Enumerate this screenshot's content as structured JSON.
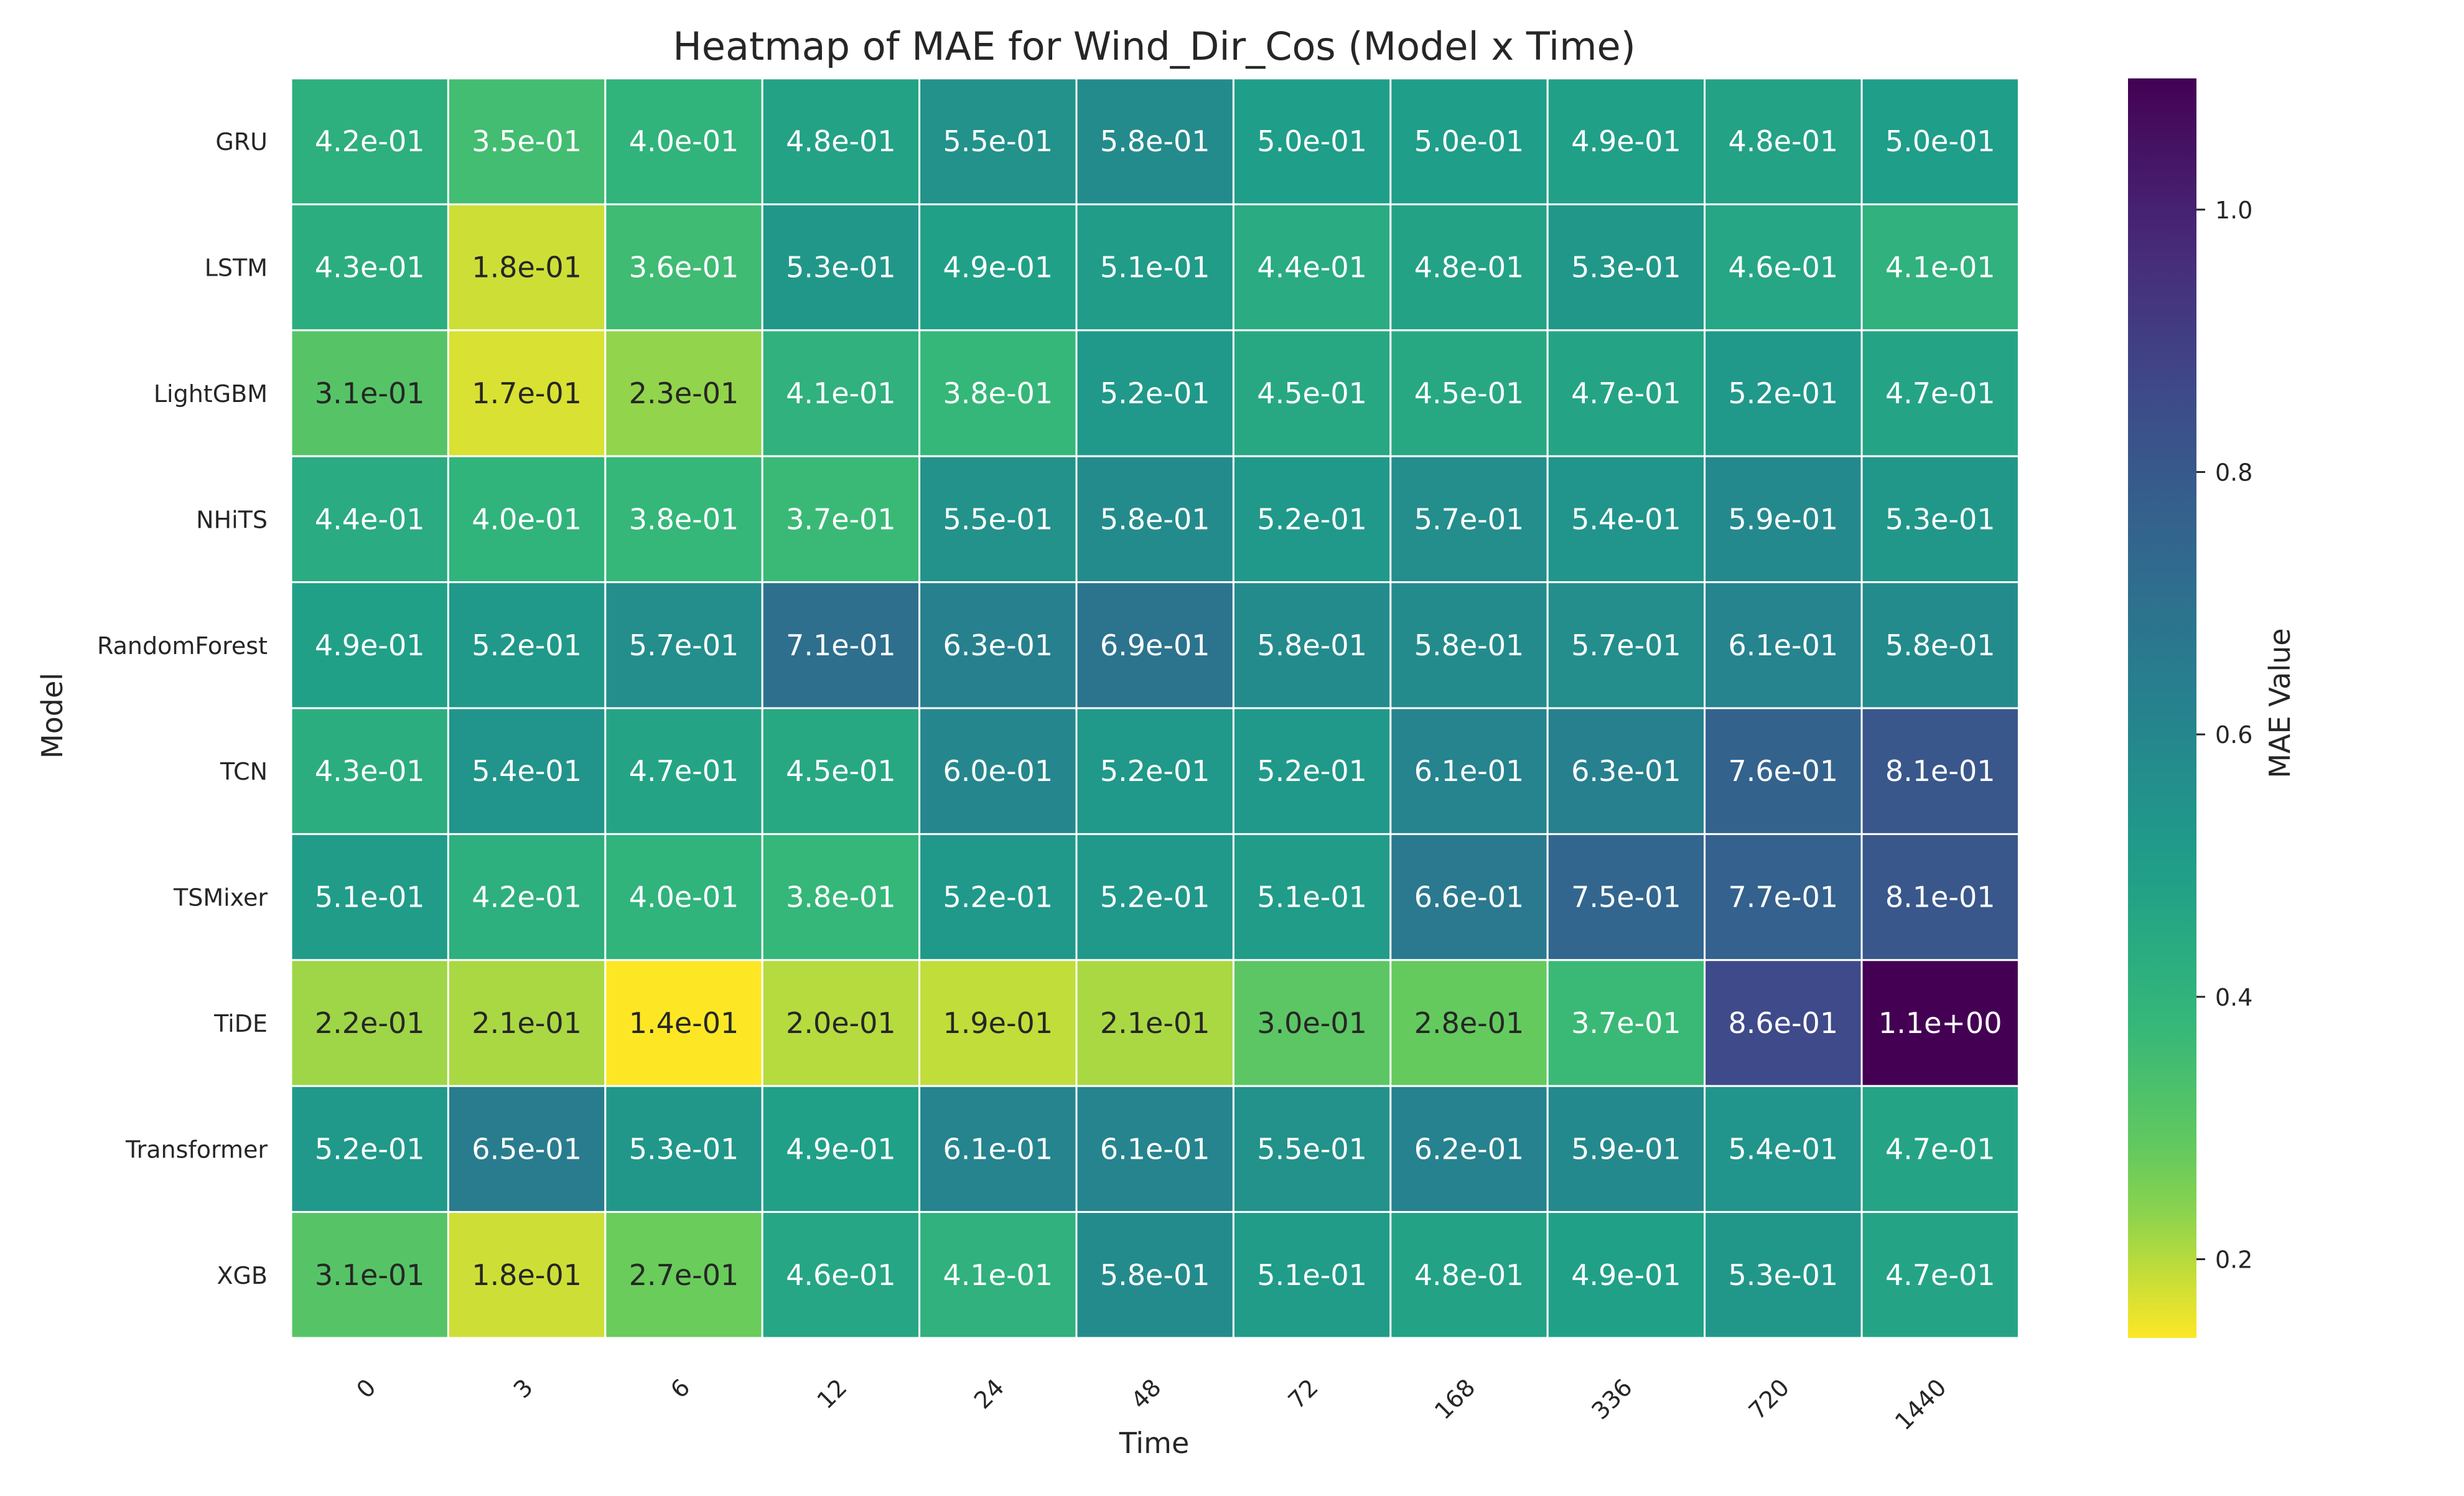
{
  "chart_data": {
    "type": "heatmap",
    "title": "Heatmap of MAE for Wind_Dir_Cos (Model x Time)",
    "xlabel": "Time",
    "ylabel": "Model",
    "x_categories": [
      "0",
      "3",
      "6",
      "12",
      "24",
      "48",
      "72",
      "168",
      "336",
      "720",
      "1440"
    ],
    "y_categories": [
      "GRU",
      "LSTM",
      "LightGBM",
      "NHiTS",
      "RandomForest",
      "TCN",
      "TSMixer",
      "TiDE",
      "Transformer",
      "XGB"
    ],
    "values": [
      [
        0.42,
        0.35,
        0.4,
        0.48,
        0.55,
        0.58,
        0.5,
        0.5,
        0.49,
        0.48,
        0.5
      ],
      [
        0.43,
        0.18,
        0.36,
        0.53,
        0.49,
        0.51,
        0.44,
        0.48,
        0.53,
        0.46,
        0.41
      ],
      [
        0.31,
        0.17,
        0.23,
        0.41,
        0.38,
        0.52,
        0.45,
        0.45,
        0.47,
        0.52,
        0.47
      ],
      [
        0.44,
        0.4,
        0.38,
        0.37,
        0.55,
        0.58,
        0.52,
        0.57,
        0.54,
        0.59,
        0.53
      ],
      [
        0.49,
        0.52,
        0.57,
        0.71,
        0.63,
        0.69,
        0.58,
        0.58,
        0.57,
        0.61,
        0.58
      ],
      [
        0.43,
        0.54,
        0.47,
        0.45,
        0.6,
        0.52,
        0.52,
        0.61,
        0.63,
        0.76,
        0.81
      ],
      [
        0.51,
        0.42,
        0.4,
        0.38,
        0.52,
        0.52,
        0.51,
        0.66,
        0.75,
        0.77,
        0.81
      ],
      [
        0.22,
        0.21,
        0.14,
        0.2,
        0.19,
        0.21,
        0.3,
        0.28,
        0.37,
        0.86,
        1.1
      ],
      [
        0.52,
        0.65,
        0.53,
        0.49,
        0.61,
        0.61,
        0.55,
        0.62,
        0.59,
        0.54,
        0.47
      ],
      [
        0.31,
        0.18,
        0.27,
        0.46,
        0.41,
        0.58,
        0.51,
        0.48,
        0.49,
        0.53,
        0.47
      ]
    ],
    "cell_labels": [
      [
        "4.2e-01",
        "3.5e-01",
        "4.0e-01",
        "4.8e-01",
        "5.5e-01",
        "5.8e-01",
        "5.0e-01",
        "5.0e-01",
        "4.9e-01",
        "4.8e-01",
        "5.0e-01"
      ],
      [
        "4.3e-01",
        "1.8e-01",
        "3.6e-01",
        "5.3e-01",
        "4.9e-01",
        "5.1e-01",
        "4.4e-01",
        "4.8e-01",
        "5.3e-01",
        "4.6e-01",
        "4.1e-01"
      ],
      [
        "3.1e-01",
        "1.7e-01",
        "2.3e-01",
        "4.1e-01",
        "3.8e-01",
        "5.2e-01",
        "4.5e-01",
        "4.5e-01",
        "4.7e-01",
        "5.2e-01",
        "4.7e-01"
      ],
      [
        "4.4e-01",
        "4.0e-01",
        "3.8e-01",
        "3.7e-01",
        "5.5e-01",
        "5.8e-01",
        "5.2e-01",
        "5.7e-01",
        "5.4e-01",
        "5.9e-01",
        "5.3e-01"
      ],
      [
        "4.9e-01",
        "5.2e-01",
        "5.7e-01",
        "7.1e-01",
        "6.3e-01",
        "6.9e-01",
        "5.8e-01",
        "5.8e-01",
        "5.7e-01",
        "6.1e-01",
        "5.8e-01"
      ],
      [
        "4.3e-01",
        "5.4e-01",
        "4.7e-01",
        "4.5e-01",
        "6.0e-01",
        "5.2e-01",
        "5.2e-01",
        "6.1e-01",
        "6.3e-01",
        "7.6e-01",
        "8.1e-01"
      ],
      [
        "5.1e-01",
        "4.2e-01",
        "4.0e-01",
        "3.8e-01",
        "5.2e-01",
        "5.2e-01",
        "5.1e-01",
        "6.6e-01",
        "7.5e-01",
        "7.7e-01",
        "8.1e-01"
      ],
      [
        "2.2e-01",
        "2.1e-01",
        "1.4e-01",
        "2.0e-01",
        "1.9e-01",
        "2.1e-01",
        "3.0e-01",
        "2.8e-01",
        "3.7e-01",
        "8.6e-01",
        "1.1e+00"
      ],
      [
        "5.2e-01",
        "6.5e-01",
        "5.3e-01",
        "4.9e-01",
        "6.1e-01",
        "6.1e-01",
        "5.5e-01",
        "6.2e-01",
        "5.9e-01",
        "5.4e-01",
        "4.7e-01"
      ],
      [
        "3.1e-01",
        "1.8e-01",
        "2.7e-01",
        "4.6e-01",
        "4.1e-01",
        "5.8e-01",
        "5.1e-01",
        "4.8e-01",
        "4.9e-01",
        "5.3e-01",
        "4.7e-01"
      ]
    ],
    "colorbar": {
      "label": "MAE Value",
      "colormap": "viridis_r",
      "range": [
        0.14,
        1.1
      ],
      "ticks": [
        0.2,
        0.4,
        0.6,
        0.8,
        1.0
      ],
      "tick_labels": [
        "0.2",
        "0.4",
        "0.6",
        "0.8",
        "1.0"
      ]
    },
    "grid": false
  }
}
